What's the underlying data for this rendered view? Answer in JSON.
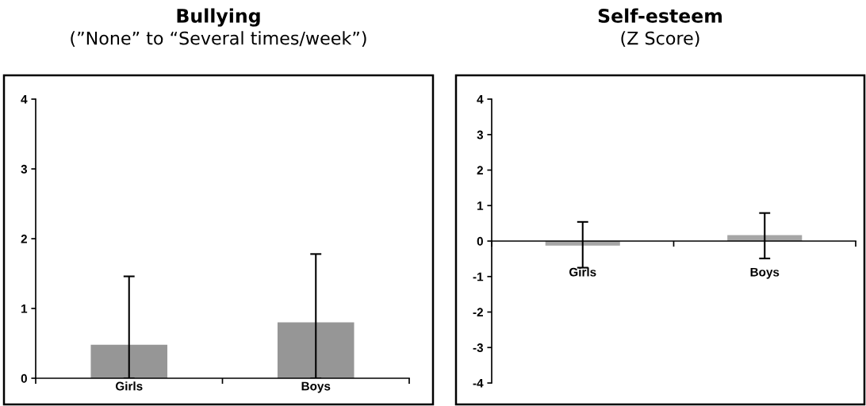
{
  "chart_data": [
    {
      "type": "bar",
      "title": "Bullying",
      "subtitle": "(”None” to “Several times/week”)",
      "categories": [
        "Girls",
        "Boys"
      ],
      "values": [
        0.48,
        0.8
      ],
      "color": "#969696",
      "errors": [
        [
          0,
          1.46
        ],
        [
          0,
          1.78
        ]
      ],
      "ylim": [
        0,
        4
      ],
      "yticks": [
        0,
        1,
        2,
        3,
        4
      ]
    },
    {
      "type": "bar",
      "title": "Self-esteem",
      "subtitle": "(Z Score)",
      "categories": [
        "Girls",
        "Boys"
      ],
      "values": [
        -0.13,
        0.17
      ],
      "color": "#a6a6a6",
      "errors": [
        [
          -0.75,
          0.54
        ],
        [
          -0.49,
          0.79
        ]
      ],
      "ylim": [
        -4,
        4
      ],
      "yticks": [
        -4,
        -3,
        -2,
        -1,
        0,
        1,
        2,
        3,
        4
      ]
    }
  ]
}
